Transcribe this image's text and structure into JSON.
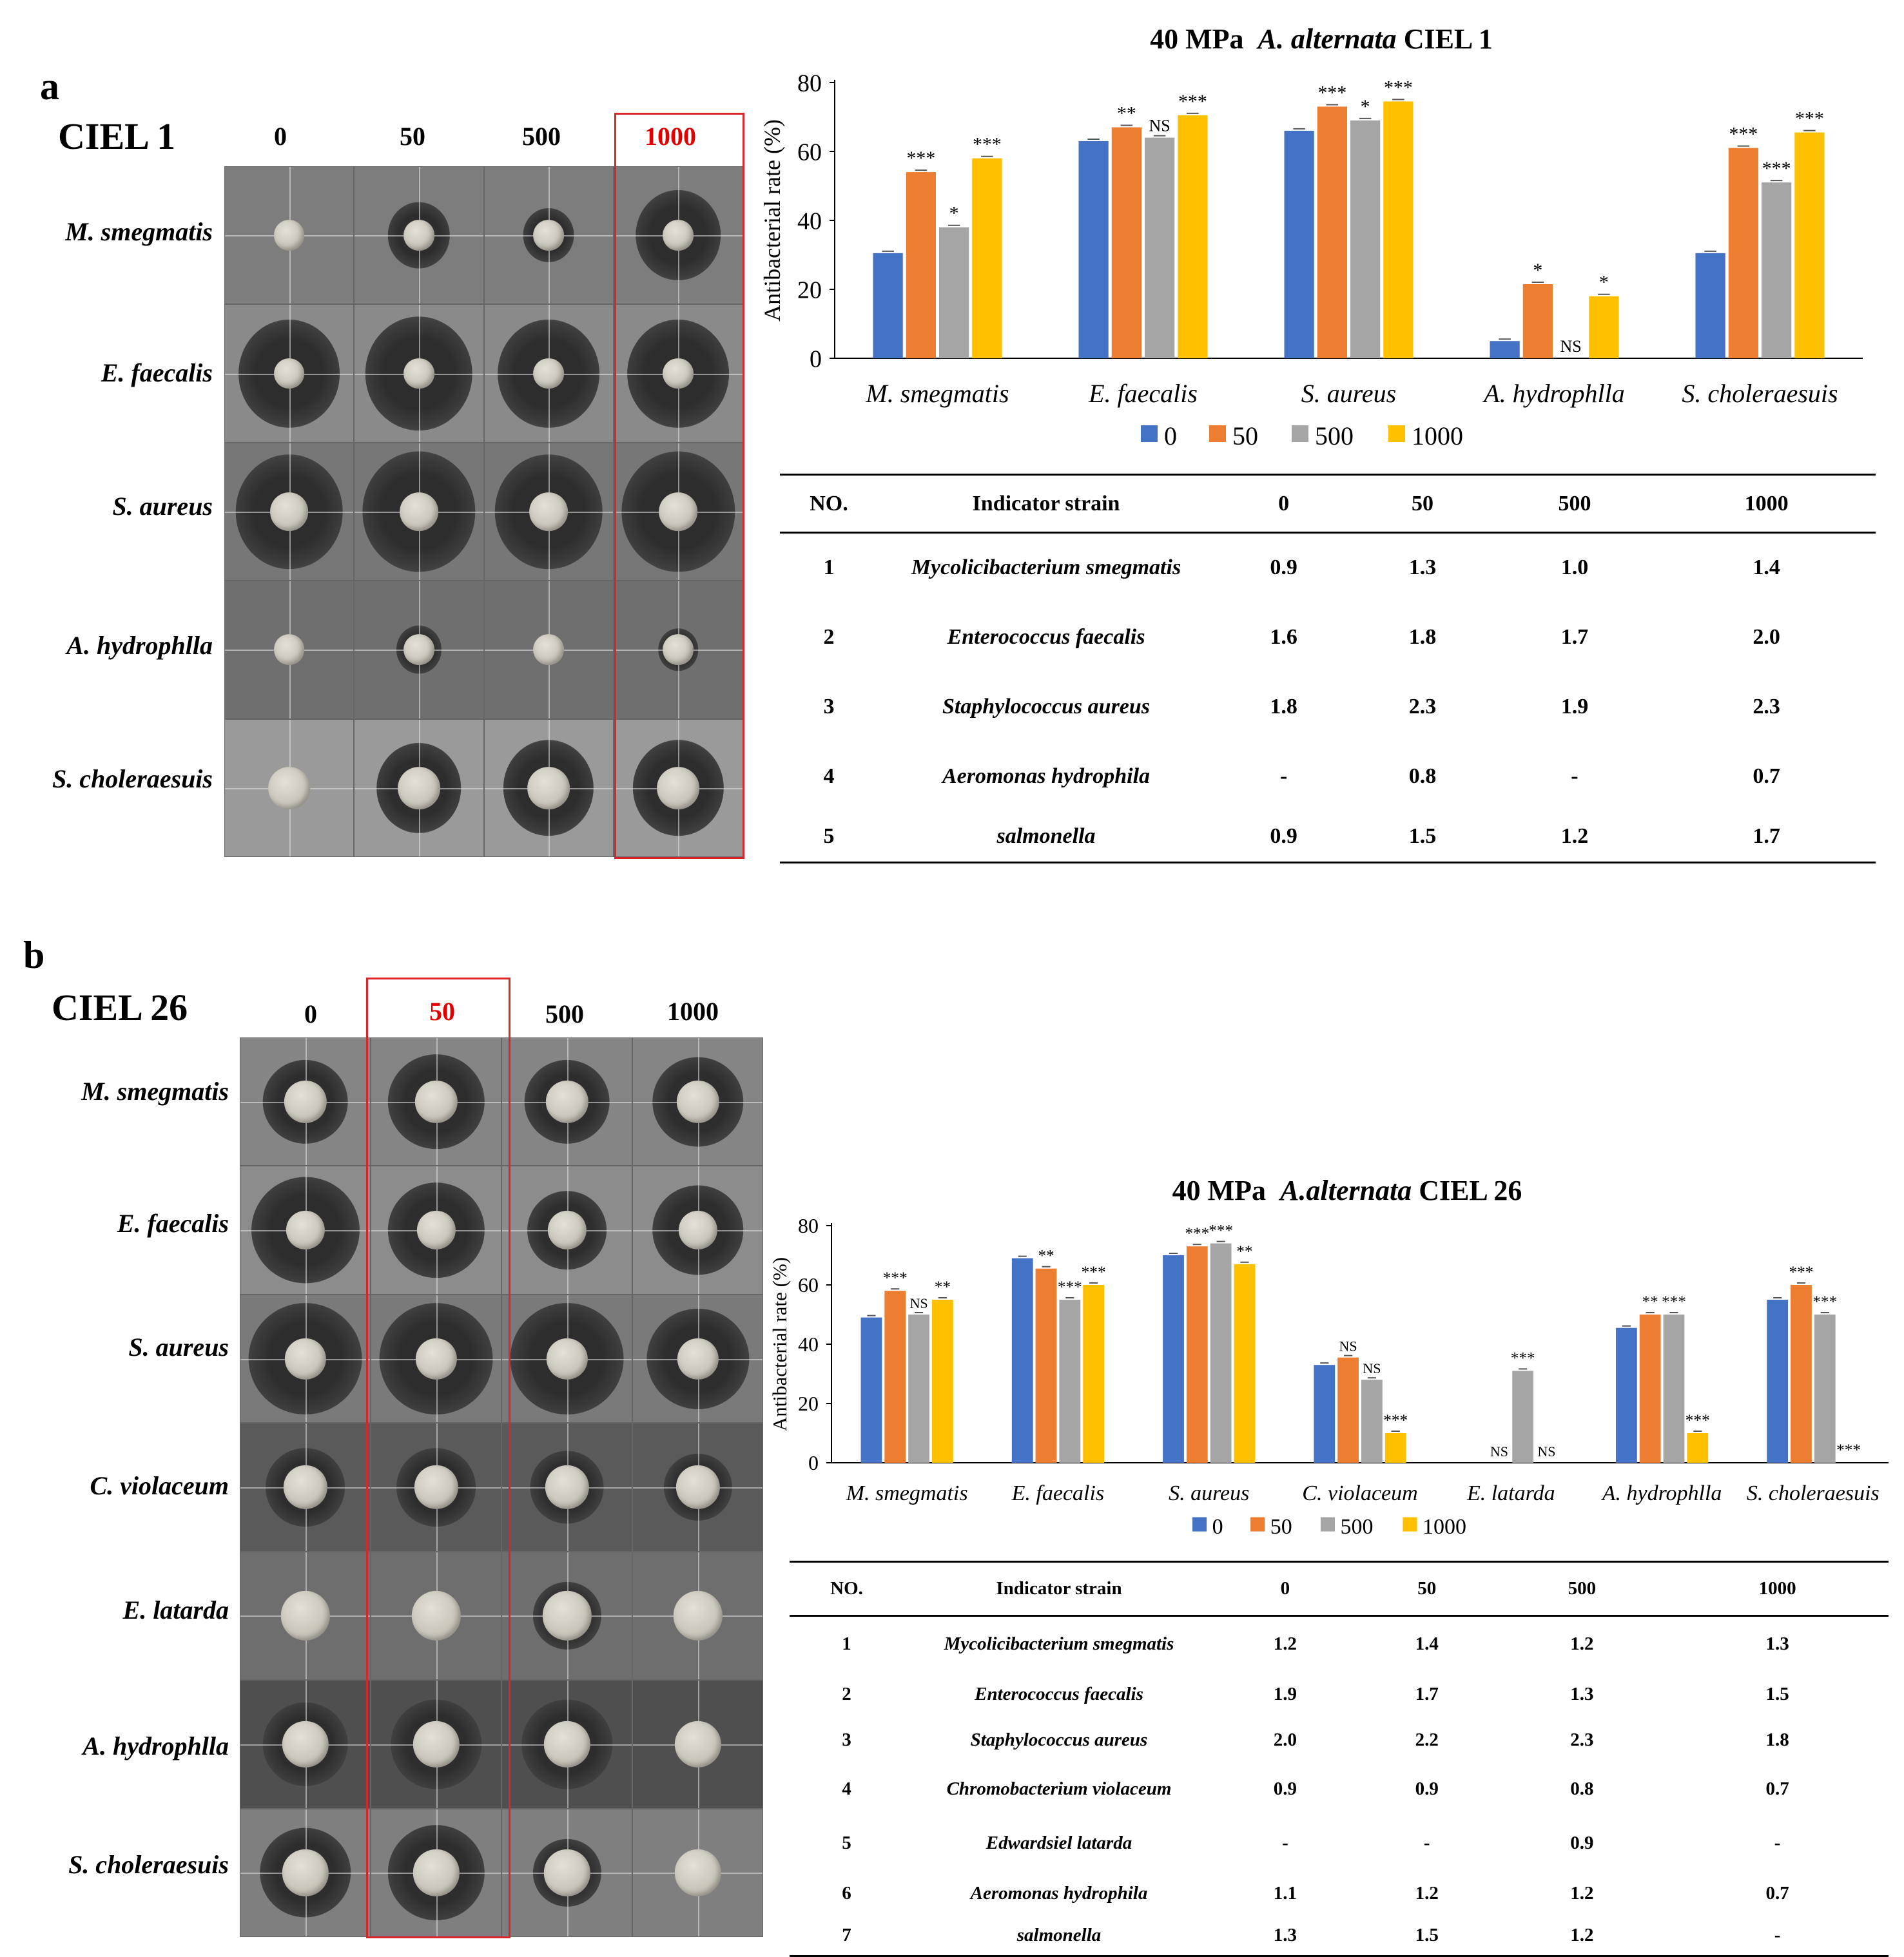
{
  "panel_a": {
    "letter": "a",
    "ciel": "CIEL 1",
    "concentrations": [
      "0",
      "50",
      "500",
      "1000"
    ],
    "highlight_index": 3,
    "rows": [
      "M. smegmatis",
      "E. faecalis",
      "S. aureus",
      "A. hydrophlla",
      "S. choleraesuis"
    ],
    "chart_title_prefix": "40 MPa",
    "chart_title_species": "A. alternata",
    "chart_title_suffix": "CIEL 1",
    "table": {
      "headers": [
        "NO.",
        "Indicator strain",
        "0",
        "50",
        "500",
        "1000"
      ],
      "rows": [
        [
          "1",
          "Mycolicibacterium smegmatis",
          "0.9",
          "1.3",
          "1.0",
          "1.4"
        ],
        [
          "2",
          "Enterococcus faecalis",
          "1.6",
          "1.8",
          "1.7",
          "2.0"
        ],
        [
          "3",
          "Staphylococcus aureus",
          "1.8",
          "2.3",
          "1.9",
          "2.3"
        ],
        [
          "4",
          "Aeromonas hydrophila",
          "-",
          "0.8",
          "-",
          "0.7"
        ],
        [
          "5",
          "salmonella",
          "0.9",
          "1.5",
          "1.2",
          "1.7"
        ]
      ]
    }
  },
  "panel_b": {
    "letter": "b",
    "ciel": "CIEL 26",
    "concentrations": [
      "0",
      "50",
      "500",
      "1000"
    ],
    "highlight_index": 1,
    "rows": [
      "M. smegmatis",
      "E. faecalis",
      "S. aureus",
      "C. violaceum",
      "E. latarda",
      "A. hydrophlla",
      "S. choleraesuis"
    ],
    "chart_title_prefix": "40 MPa",
    "chart_title_species": "A.alternata",
    "chart_title_suffix": "CIEL 26",
    "table": {
      "headers": [
        "NO.",
        "Indicator strain",
        "0",
        "50",
        "500",
        "1000"
      ],
      "rows": [
        [
          "1",
          "Mycolicibacterium smegmatis",
          "1.2",
          "1.4",
          "1.2",
          "1.3"
        ],
        [
          "2",
          "Enterococcus faecalis",
          "1.9",
          "1.7",
          "1.3",
          "1.5"
        ],
        [
          "3",
          "Staphylococcus aureus",
          "2.0",
          "2.2",
          "2.3",
          "1.8"
        ],
        [
          "4",
          "Chromobacterium violaceum",
          "0.9",
          "0.9",
          "0.8",
          "0.7"
        ],
        [
          "5",
          "Edwardsiel latarda",
          "-",
          "-",
          "0.9",
          "-"
        ],
        [
          "6",
          "Aeromonas hydrophila",
          "1.1",
          "1.2",
          "1.2",
          "0.7"
        ],
        [
          "7",
          "salmonella",
          "1.3",
          "1.5",
          "1.2",
          "-"
        ]
      ]
    }
  },
  "colors": {
    "s0": "#4472C4",
    "s50": "#ED7D31",
    "s500": "#A5A5A5",
    "s1000": "#FFC000",
    "highlight": "#d9262b"
  },
  "chart_data": [
    {
      "type": "bar",
      "title": "40 MPa  A. alternata CIEL 1",
      "ylabel": "Antibacterial rate (%)",
      "xlabel": "",
      "ylim": [
        0,
        80
      ],
      "yticks": [
        0,
        20,
        40,
        60,
        80
      ],
      "categories": [
        "M. smegmatis",
        "E. faecalis",
        "S. aureus",
        "A. hydrophlla",
        "S. choleraesuis"
      ],
      "series": [
        {
          "name": "0",
          "values": [
            30.5,
            63,
            66,
            5,
            30.5
          ],
          "sig": [
            "",
            "",
            "",
            "",
            ""
          ]
        },
        {
          "name": "50",
          "values": [
            54,
            67,
            73,
            21.5,
            61
          ],
          "sig": [
            "***",
            "**",
            "***",
            "*",
            "***"
          ]
        },
        {
          "name": "500",
          "values": [
            38,
            64,
            69,
            0,
            51
          ],
          "sig": [
            "*",
            "NS",
            "*",
            "NS",
            "***"
          ]
        },
        {
          "name": "1000",
          "values": [
            58,
            70.5,
            74.5,
            18,
            65.5
          ],
          "sig": [
            "***",
            "***",
            "***",
            "*",
            "***"
          ]
        }
      ],
      "legend": "bottom"
    },
    {
      "type": "bar",
      "title": "40 MPa  A.alternata CIEL 26",
      "ylabel": "Antibacterial rate (%)",
      "xlabel": "",
      "ylim": [
        0,
        80
      ],
      "yticks": [
        0,
        20,
        40,
        60,
        80
      ],
      "categories": [
        "M. smegmatis",
        "E. faecalis",
        "S. aureus",
        "C. violaceum",
        "E. latarda",
        "A. hydrophlla",
        "S. choleraesuis"
      ],
      "series": [
        {
          "name": "0",
          "values": [
            49,
            69,
            70,
            33,
            0,
            45.5,
            55
          ],
          "sig": [
            "",
            "",
            "",
            "",
            "",
            "",
            ""
          ]
        },
        {
          "name": "50",
          "values": [
            58,
            65.5,
            73,
            35.5,
            0,
            50,
            60
          ],
          "sig": [
            "***",
            "**",
            "***",
            "NS",
            "NS",
            "**",
            "***"
          ]
        },
        {
          "name": "500",
          "values": [
            50,
            55,
            74,
            28,
            31,
            50,
            50
          ],
          "sig": [
            "NS",
            "***",
            "***",
            "NS",
            "***",
            "***",
            "***"
          ]
        },
        {
          "name": "1000",
          "values": [
            55,
            60,
            67,
            10,
            0,
            10,
            0
          ],
          "sig": [
            "**",
            "***",
            "**",
            "***",
            "NS",
            "***",
            "***"
          ]
        }
      ],
      "legend": "bottom"
    }
  ]
}
